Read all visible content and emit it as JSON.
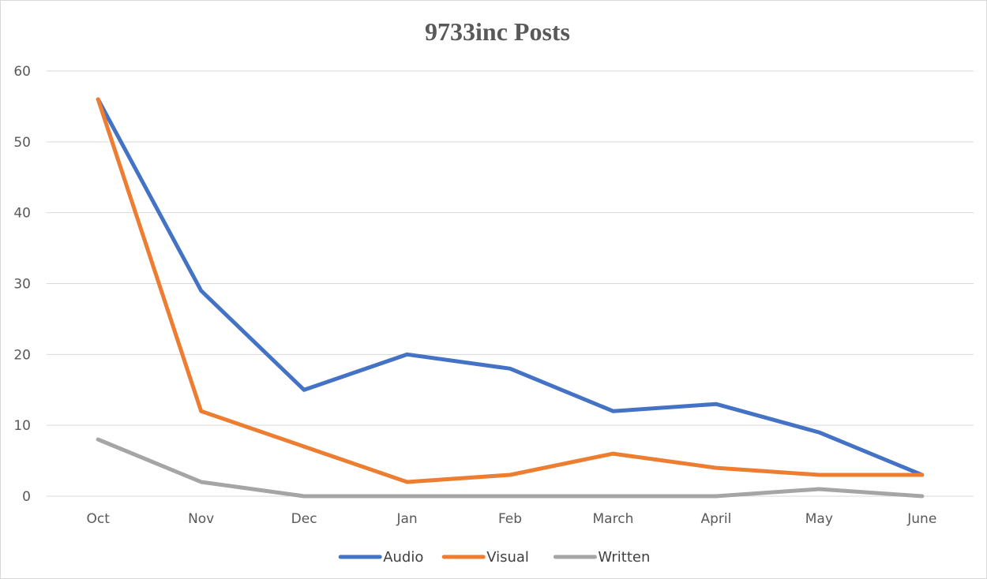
{
  "chart_data": {
    "type": "line",
    "title": "9733inc Posts",
    "xlabel": "",
    "ylabel": "",
    "categories": [
      "Oct",
      "Nov",
      "Dec",
      "Jan",
      "Feb",
      "March",
      "April",
      "May",
      "June"
    ],
    "ylim": [
      0,
      60
    ],
    "yticks": [
      0,
      10,
      20,
      30,
      40,
      50,
      60
    ],
    "grid": true,
    "legend_position": "bottom",
    "series": [
      {
        "name": "Audio",
        "color": "#4472C4",
        "values": [
          56,
          29,
          15,
          20,
          18,
          12,
          13,
          9,
          3
        ]
      },
      {
        "name": "Visual",
        "color": "#ED7D31",
        "values": [
          56,
          12,
          7,
          2,
          3,
          6,
          4,
          3,
          3
        ]
      },
      {
        "name": "Written",
        "color": "#A5A5A5",
        "values": [
          8,
          2,
          0,
          0,
          0,
          0,
          0,
          1,
          0
        ]
      }
    ]
  }
}
